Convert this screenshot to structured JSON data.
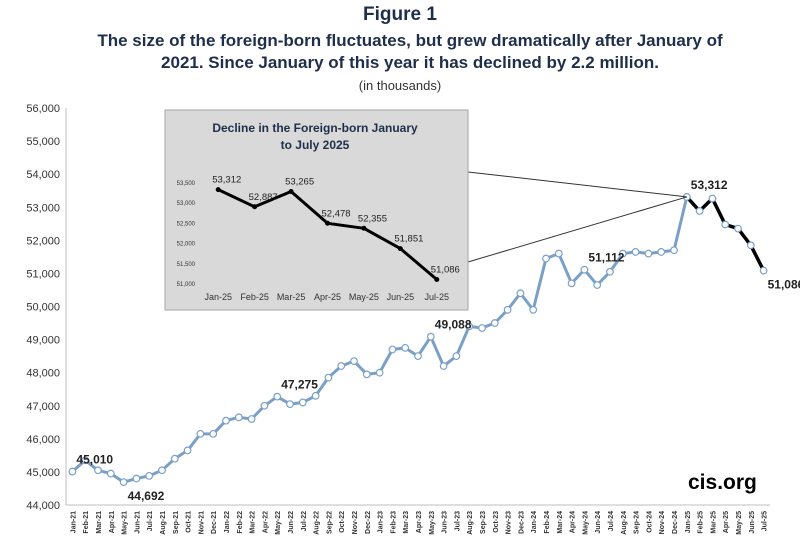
{
  "figure": {
    "title": "Figure 1",
    "subtitle": "The size of the foreign-born fluctuates, but grew dramatically after January of 2021. Since January of this year it has declined by 2.2 million.",
    "units": "(in thousands)",
    "brand": "cis.org"
  },
  "colors": {
    "main_line": "#7ba0c7",
    "marker_fill": "#ffffff",
    "recent_line": "#000000",
    "inset_bg": "#d9d9d9",
    "inset_border": "#a6a6a6",
    "title_color": "#1f2e4a"
  },
  "chart_data": [
    {
      "type": "line",
      "title": "The size of the foreign-born fluctuates, but grew dramatically after January of 2021. Since January of this year it has declined by 2.2 million.",
      "ylabel": "",
      "xlabel": "",
      "ylim": [
        44000,
        56000
      ],
      "ytick_step": 1000,
      "grid": false,
      "categories": [
        "Jan-21",
        "Feb-21",
        "Mar-21",
        "Apr-21",
        "May-21",
        "Jun-21",
        "Jul-21",
        "Aug-21",
        "Sep-21",
        "Oct-21",
        "Nov-21",
        "Dec-21",
        "Jan-22",
        "Feb-22",
        "Mar-22",
        "Apr-22",
        "May-22",
        "Jun-22",
        "Jul-22",
        "Aug-22",
        "Sep-22",
        "Oct-22",
        "Nov-22",
        "Dec-22",
        "Jan-23",
        "Feb-23",
        "Mar-23",
        "Apr-23",
        "May-23",
        "Jun-23",
        "Jul-23",
        "Aug-23",
        "Sep-23",
        "Oct-23",
        "Nov-23",
        "Dec-23",
        "Jan-24",
        "Feb-24",
        "Mar-24",
        "Apr-24",
        "May-24",
        "Jun-24",
        "Jul-24",
        "Aug-24",
        "Sep-24",
        "Oct-24",
        "Nov-24",
        "Dec-24",
        "Jan-25",
        "Feb-25",
        "Mar-25",
        "Apr-25",
        "May-25",
        "Jun-25",
        "Jul-25"
      ],
      "values": [
        45010,
        45350,
        45050,
        44950,
        44692,
        44800,
        44880,
        45050,
        45400,
        45650,
        46150,
        46150,
        46550,
        46650,
        46600,
        47000,
        47275,
        47050,
        47100,
        47300,
        47850,
        48200,
        48350,
        47950,
        48000,
        48700,
        48750,
        48500,
        49088,
        48200,
        48500,
        49400,
        49350,
        49500,
        49900,
        50400,
        49900,
        51450,
        51600,
        50700,
        51112,
        50650,
        51050,
        51600,
        51650,
        51600,
        51650,
        51700,
        53312,
        52887,
        53265,
        52478,
        52355,
        51851,
        51086
      ],
      "highlight_from_index": 48,
      "labels": [
        {
          "index": 0,
          "text": "45,010",
          "position": "above"
        },
        {
          "index": 4,
          "text": "44,692",
          "position": "below"
        },
        {
          "index": 16,
          "text": "47,275",
          "position": "above"
        },
        {
          "index": 28,
          "text": "49,088",
          "position": "above"
        },
        {
          "index": 40,
          "text": "51,112",
          "position": "above"
        },
        {
          "index": 48,
          "text": "53,312",
          "position": "above"
        },
        {
          "index": 54,
          "text": "51,086",
          "position": "below"
        }
      ]
    },
    {
      "type": "line",
      "title": "Decline in the Foreign-born January to July 2025",
      "title_lines": [
        "Decline in the Foreign-born January",
        "to July 2025"
      ],
      "ylim": [
        51000,
        53500
      ],
      "ytick_step": 500,
      "categories": [
        "Jan-25",
        "Feb-25",
        "Mar-25",
        "Apr-25",
        "May-25",
        "Jun-25",
        "Jul-25"
      ],
      "values": [
        53312,
        52887,
        53265,
        52478,
        52355,
        51851,
        51086
      ],
      "value_labels": [
        "53,312",
        "52,887",
        "53,265",
        "52,478",
        "52,355",
        "51,851",
        "51,086"
      ]
    }
  ]
}
